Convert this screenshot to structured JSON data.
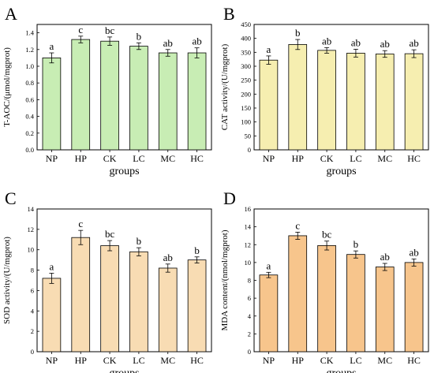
{
  "chart_data": [
    {
      "type": "bar",
      "panel": "A",
      "categories": [
        "NP",
        "HP",
        "CK",
        "LC",
        "MC",
        "HC"
      ],
      "values": [
        1.1,
        1.32,
        1.3,
        1.24,
        1.16,
        1.16
      ],
      "errors": [
        0.06,
        0.04,
        0.05,
        0.04,
        0.04,
        0.06
      ],
      "significance": [
        "a",
        "c",
        "bc",
        "b",
        "ab",
        "ab"
      ],
      "xlabel": "groups",
      "ylabel": "T-AOC/(μmol/mgprot)",
      "ylim": [
        0,
        1.5
      ],
      "yticks": [
        "0.0",
        "0.2",
        "0.4",
        "0.6",
        "0.8",
        "1.0",
        "1.2",
        "1.4"
      ],
      "bar_color": "#c8edb4",
      "grid": false
    },
    {
      "type": "bar",
      "panel": "B",
      "categories": [
        "NP",
        "HP",
        "CK",
        "LC",
        "MC",
        "HC"
      ],
      "values": [
        322,
        378,
        357,
        347,
        344,
        345
      ],
      "errors": [
        15,
        18,
        10,
        14,
        12,
        14
      ],
      "significance": [
        "a",
        "b",
        "ab",
        "ab",
        "ab",
        "ab"
      ],
      "xlabel": "groups",
      "ylabel": "CAT activity/(U/mgprot)",
      "ylim": [
        0,
        450
      ],
      "yticks": [
        "0",
        "50",
        "100",
        "150",
        "200",
        "250",
        "300",
        "350",
        "400",
        "450"
      ],
      "bar_color": "#f6eeb0",
      "grid": false
    },
    {
      "type": "bar",
      "panel": "C",
      "categories": [
        "NP",
        "HP",
        "CK",
        "LC",
        "MC",
        "HC"
      ],
      "values": [
        7.2,
        11.2,
        10.4,
        9.8,
        8.2,
        9.0
      ],
      "errors": [
        0.5,
        0.7,
        0.5,
        0.4,
        0.4,
        0.3
      ],
      "significance": [
        "a",
        "c",
        "bc",
        "b",
        "ab",
        "b"
      ],
      "xlabel": "groups",
      "ylabel": "SOD activity/(U/mgprot)",
      "ylim": [
        0,
        14
      ],
      "yticks": [
        "0",
        "2",
        "4",
        "6",
        "8",
        "10",
        "12",
        "14"
      ],
      "bar_color": "#f8dcb3",
      "grid": false
    },
    {
      "type": "bar",
      "panel": "D",
      "categories": [
        "NP",
        "HP",
        "CK",
        "LC",
        "MC",
        "HC"
      ],
      "values": [
        8.6,
        13.0,
        11.9,
        10.9,
        9.5,
        10.0
      ],
      "errors": [
        0.3,
        0.4,
        0.5,
        0.4,
        0.4,
        0.4
      ],
      "significance": [
        "a",
        "c",
        "bc",
        "b",
        "ab",
        "ab"
      ],
      "xlabel": "groups",
      "ylabel": "MDA content/(nmol/mgprot)",
      "ylim": [
        0,
        16
      ],
      "yticks": [
        "0",
        "2",
        "4",
        "6",
        "8",
        "10",
        "12",
        "14",
        "16"
      ],
      "bar_color": "#f7c58c",
      "grid": false
    }
  ]
}
